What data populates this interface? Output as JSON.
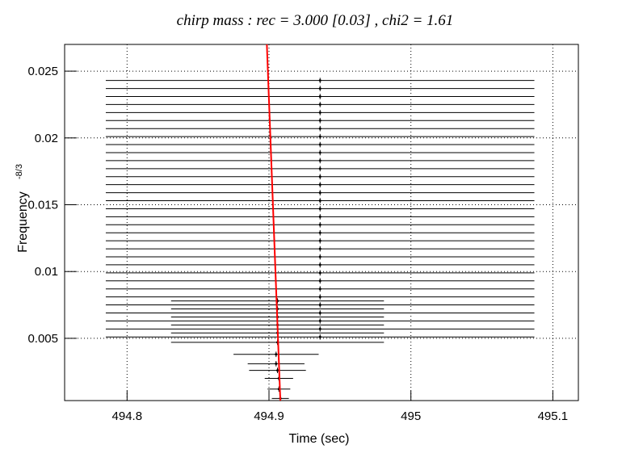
{
  "chart_data": {
    "type": "scatter",
    "title": "chirp mass : rec = 3.000 [0.03] , chi2 = 1.61",
    "xlabel": "Time (sec)",
    "ylabel": "Frequency",
    "ylabel_superscript": "-8/3",
    "xlim": [
      494.756,
      495.118
    ],
    "ylim": [
      0.00034,
      0.027
    ],
    "xticks": [
      494.8,
      494.9,
      495,
      495.1
    ],
    "yticks": [
      0.005,
      0.01,
      0.015,
      0.02,
      0.025
    ],
    "grid": true,
    "color": "#000000",
    "points": {
      "x": [
        494.936,
        494.936,
        494.936,
        494.936,
        494.936,
        494.936,
        494.936,
        494.936,
        494.936,
        494.936,
        494.936,
        494.936,
        494.936,
        494.936,
        494.936,
        494.936,
        494.936,
        494.936,
        494.936,
        494.936,
        494.936,
        494.936,
        494.936,
        494.936,
        494.936,
        494.936,
        494.936,
        494.936,
        494.936,
        494.936,
        494.936,
        494.936,
        494.936,
        494.906,
        494.906,
        494.906,
        494.906,
        494.906,
        494.906,
        494.905,
        494.905,
        494.906,
        494.907,
        494.907,
        494.908
      ],
      "y": [
        0.0051,
        0.0057,
        0.0063,
        0.0069,
        0.0075,
        0.0081,
        0.0087,
        0.0093,
        0.0099,
        0.0105,
        0.0111,
        0.0117,
        0.0123,
        0.0129,
        0.0135,
        0.0141,
        0.0147,
        0.0153,
        0.0159,
        0.0165,
        0.0171,
        0.0177,
        0.0183,
        0.0189,
        0.0195,
        0.0201,
        0.0207,
        0.0213,
        0.0219,
        0.0225,
        0.0231,
        0.0237,
        0.0243,
        0.0047,
        0.0054,
        0.006,
        0.0066,
        0.0072,
        0.0078,
        0.0038,
        0.0031,
        0.0026,
        0.002,
        0.0012,
        0.0005
      ],
      "xerr": [
        0.151,
        0.151,
        0.151,
        0.151,
        0.151,
        0.151,
        0.151,
        0.151,
        0.151,
        0.151,
        0.151,
        0.151,
        0.151,
        0.151,
        0.151,
        0.151,
        0.151,
        0.151,
        0.151,
        0.151,
        0.151,
        0.151,
        0.151,
        0.151,
        0.151,
        0.151,
        0.151,
        0.151,
        0.151,
        0.151,
        0.151,
        0.151,
        0.151,
        0.075,
        0.075,
        0.075,
        0.075,
        0.075,
        0.075,
        0.03,
        0.02,
        0.02,
        0.01,
        0.008,
        0.006
      ],
      "yerr": [
        0.0002,
        0.0002,
        0.0002,
        0.0002,
        0.0002,
        0.0002,
        0.0002,
        0.0002,
        0.0002,
        0.0002,
        0.0002,
        0.0002,
        0.0002,
        0.0002,
        0.0002,
        0.0002,
        0.0002,
        0.0002,
        0.0002,
        0.0002,
        0.0002,
        0.0002,
        0.0002,
        0.0002,
        0.0002,
        0.0002,
        0.0002,
        0.0002,
        0.0002,
        0.0002,
        0.0002,
        0.0002,
        0.0002,
        0.0002,
        0.0002,
        0.0002,
        0.0002,
        0.0002,
        0.0002,
        0.0002,
        0.0002,
        0.0002,
        0.0002,
        0.0002,
        0.0002
      ]
    },
    "fit": {
      "x": [
        494.8985,
        494.908
      ],
      "y": [
        0.027,
        0.00034
      ],
      "color": "#ff0000"
    }
  }
}
